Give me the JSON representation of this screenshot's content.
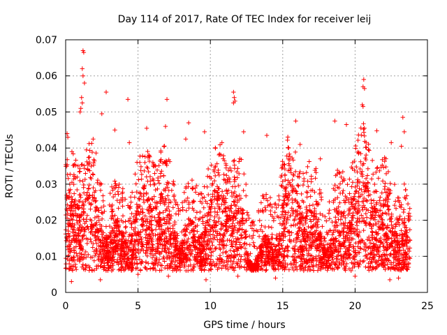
{
  "chart_data": {
    "type": "scatter",
    "title": "Day 114 of 2017, Rate Of TEC Index for receiver leij",
    "xlabel": "GPS time / hours",
    "ylabel": "ROTI / TECUs",
    "xlim": [
      0,
      25
    ],
    "ylim": [
      0,
      0.07
    ],
    "x_ticks": [
      "0",
      "5",
      "10",
      "15",
      "20",
      "25"
    ],
    "y_ticks": [
      "0",
      "0.01",
      "0.02",
      "0.03",
      "0.04",
      "0.05",
      "0.06",
      "0.07"
    ],
    "grid": true,
    "marker": "+",
    "color": "#ff0000",
    "series": [
      {
        "name": "ROTI",
        "points": [
          [
            1.2,
            0.067
          ],
          [
            1.25,
            0.0665
          ],
          [
            1.15,
            0.062
          ],
          [
            1.2,
            0.06
          ],
          [
            1.3,
            0.058
          ],
          [
            1.1,
            0.054
          ],
          [
            1.05,
            0.051
          ],
          [
            1.0,
            0.05
          ],
          [
            1.15,
            0.0525
          ],
          [
            2.8,
            0.0555
          ],
          [
            4.3,
            0.0535
          ],
          [
            7.0,
            0.0535
          ],
          [
            8.5,
            0.047
          ],
          [
            11.6,
            0.0555
          ],
          [
            11.65,
            0.054
          ],
          [
            11.6,
            0.0525
          ],
          [
            11.7,
            0.053
          ],
          [
            20.6,
            0.059
          ],
          [
            20.55,
            0.057
          ],
          [
            20.65,
            0.0565
          ],
          [
            20.5,
            0.052
          ],
          [
            20.55,
            0.0515
          ],
          [
            15.9,
            0.0475
          ],
          [
            18.6,
            0.0475
          ],
          [
            21.5,
            0.0448
          ],
          [
            23.3,
            0.0485
          ],
          [
            12.3,
            0.0445
          ],
          [
            6.9,
            0.046
          ],
          [
            9.6,
            0.0445
          ],
          [
            2.5,
            0.0495
          ],
          [
            0.1,
            0.044
          ],
          [
            0.15,
            0.043
          ],
          [
            3.4,
            0.045
          ],
          [
            5.6,
            0.0455
          ],
          [
            13.9,
            0.0435
          ],
          [
            19.4,
            0.0465
          ],
          [
            23.4,
            0.0445
          ],
          [
            23.2,
            0.0405
          ],
          [
            22.5,
            0.0415
          ],
          [
            1.9,
            0.0425
          ],
          [
            4.4,
            0.0415
          ],
          [
            8.3,
            0.0425
          ],
          [
            10.8,
            0.0415
          ],
          [
            16.2,
            0.041
          ],
          [
            17.6,
            0.037
          ],
          [
            0.4,
            0.003
          ],
          [
            2.4,
            0.0035
          ],
          [
            9.7,
            0.0035
          ],
          [
            14.5,
            0.004
          ],
          [
            22.4,
            0.0035
          ],
          [
            11.9,
            0.0045
          ],
          [
            20.0,
            0.0045
          ],
          [
            5.0,
            0.005
          ],
          [
            7.1,
            0.0045
          ],
          [
            23.0,
            0.004
          ]
        ]
      }
    ]
  }
}
